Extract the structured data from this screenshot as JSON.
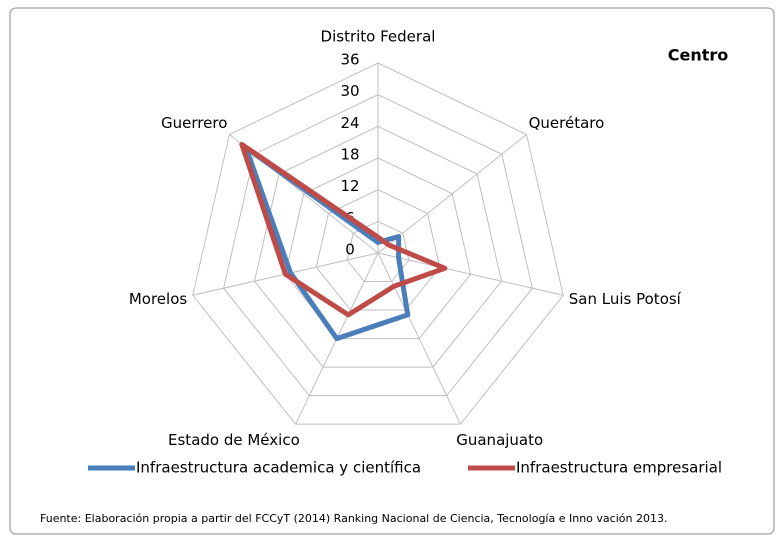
{
  "chart_data": {
    "type": "radar",
    "title": "Centro",
    "categories": [
      "Distrito Federal",
      "Querétaro",
      "San Luis Potosí",
      "Guanajuato",
      "Estado de México",
      "Morelos",
      "Guerrero"
    ],
    "series": [
      {
        "name": "Infraestructura academica y científica",
        "color": "#4a7ebb",
        "values": [
          2,
          5,
          4,
          13,
          18,
          17,
          32
        ]
      },
      {
        "name": "Infraestructura empresarial",
        "color": "#be4b48",
        "values": [
          3,
          2.5,
          13,
          7,
          13,
          18,
          33
        ]
      }
    ],
    "ylim": [
      0,
      36
    ],
    "yticks": [
      0,
      6,
      12,
      18,
      24,
      30,
      36
    ],
    "grid": true,
    "legend": "bottom",
    "source": "Fuente: Elaboración propia a partir del FCCyT (2014) Ranking Nacional de Ciencia, Tecnología e Inno vación 2013."
  }
}
